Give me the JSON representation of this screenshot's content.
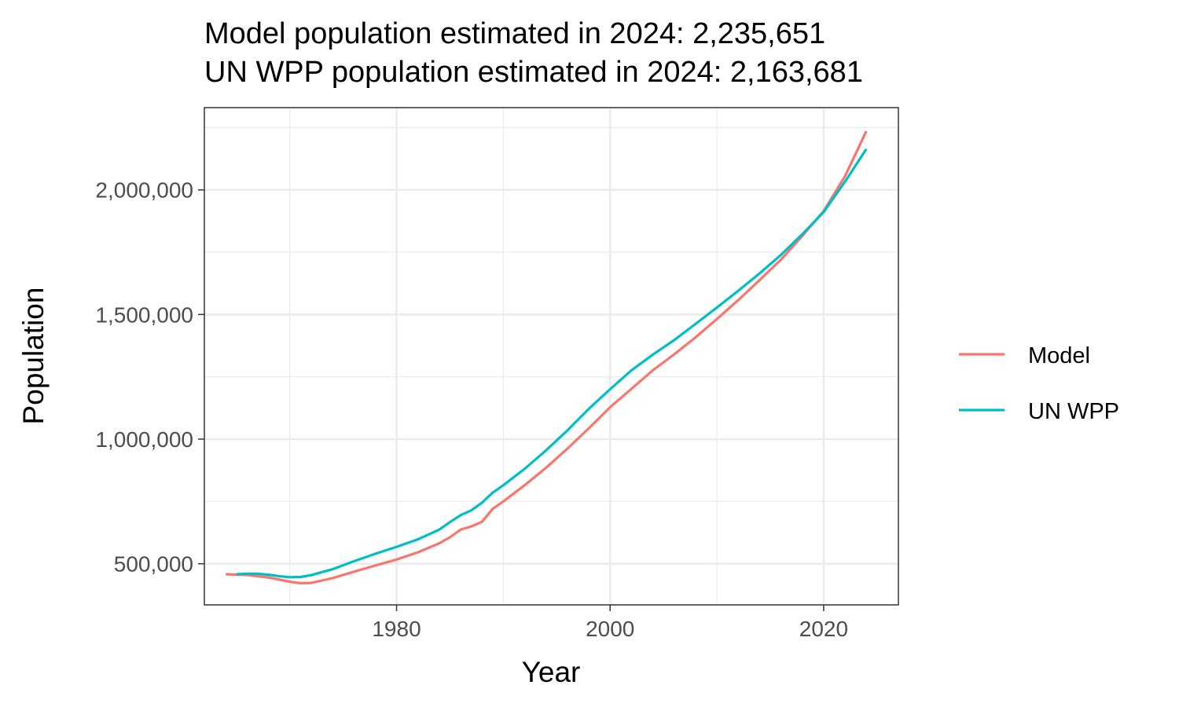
{
  "chart_data": {
    "type": "line",
    "title": "Model population estimated in 2024: 2,235,651",
    "subtitle": "UN WPP population estimated in 2024: 2,163,681",
    "xlabel": "Year",
    "ylabel": "Population",
    "xlim": [
      1962,
      2027
    ],
    "ylim": [
      335000,
      2330000
    ],
    "x_ticks": [
      1980,
      2000,
      2020
    ],
    "x_tick_labels": [
      "1980",
      "2000",
      "2020"
    ],
    "y_ticks": [
      500000,
      1000000,
      1500000,
      2000000
    ],
    "y_tick_labels": [
      "500,000",
      "1,000,000",
      "1,500,000",
      "2,000,000"
    ],
    "grid": true,
    "legend_position": "right",
    "series": [
      {
        "name": "Model",
        "color": "#F8766D",
        "x": [
          1964,
          1966,
          1968,
          1970,
          1971,
          1972,
          1974,
          1976,
          1978,
          1980,
          1982,
          1984,
          1985,
          1986,
          1987,
          1988,
          1989,
          1990,
          1992,
          1994,
          1996,
          1998,
          2000,
          2002,
          2004,
          2006,
          2008,
          2010,
          2012,
          2014,
          2016,
          2018,
          2020,
          2022,
          2024
        ],
        "values": [
          458000,
          455000,
          445000,
          428000,
          422000,
          423000,
          442000,
          468000,
          493000,
          517000,
          546000,
          582000,
          606000,
          637000,
          650000,
          668000,
          720000,
          750000,
          815000,
          885000,
          962000,
          1043000,
          1128000,
          1202000,
          1276000,
          1340000,
          1408000,
          1482000,
          1558000,
          1638000,
          1720000,
          1815000,
          1915000,
          2055000,
          2235651
        ]
      },
      {
        "name": "UN WPP",
        "color": "#00BFC4",
        "x": [
          1965,
          1966,
          1967,
          1968,
          1969,
          1970,
          1971,
          1972,
          1974,
          1976,
          1978,
          1980,
          1982,
          1984,
          1985,
          1986,
          1987,
          1988,
          1989,
          1990,
          1992,
          1994,
          1996,
          1998,
          2000,
          2002,
          2004,
          2006,
          2008,
          2010,
          2012,
          2014,
          2016,
          2018,
          2020,
          2022,
          2024
        ],
        "values": [
          458000,
          460000,
          460000,
          456000,
          450000,
          446000,
          447000,
          454000,
          478000,
          510000,
          540000,
          568000,
          598000,
          637000,
          667000,
          695000,
          714000,
          745000,
          785000,
          815000,
          881000,
          955000,
          1035000,
          1121000,
          1200000,
          1276000,
          1339000,
          1397000,
          1462000,
          1528000,
          1595000,
          1665000,
          1739000,
          1822000,
          1911000,
          2033000,
          2163681
        ]
      }
    ]
  }
}
